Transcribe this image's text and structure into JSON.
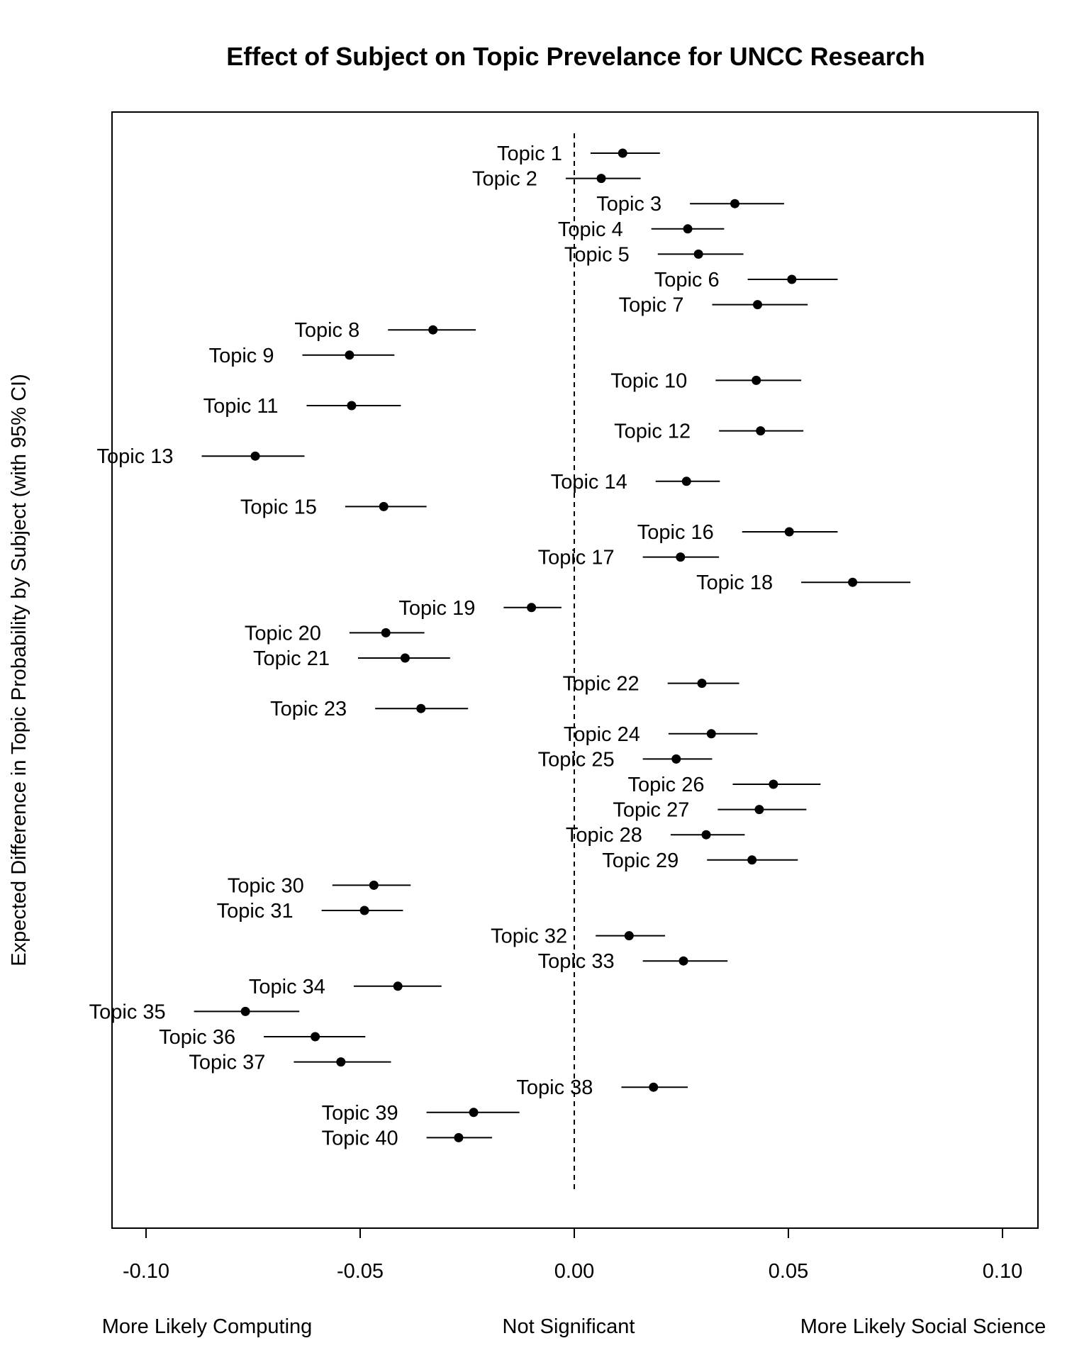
{
  "chart_data": {
    "type": "scatter",
    "title": "Effect of Subject on Topic Prevelance for UNCC Research",
    "ylabel": "Expected Difference in Topic Probability by Subject (with 95% CI)",
    "xlim": [
      -0.108,
      0.108
    ],
    "x_ticks": [
      -0.1,
      -0.05,
      0.0,
      0.05,
      0.1
    ],
    "x_tick_labels": [
      "-0.10",
      "-0.05",
      "0.00",
      "0.05",
      "0.10"
    ],
    "reference_line_x": 0,
    "bottom_labels": {
      "left": "More Likely Computing",
      "center": "Not Significant",
      "right": "More Likely Social Science"
    },
    "points": [
      {
        "label": "Topic 1",
        "estimate": 0.0113,
        "lower": 0.0038,
        "upper": 0.02,
        "row": 1
      },
      {
        "label": "Topic 2",
        "estimate": 0.0063,
        "lower": -0.002,
        "upper": 0.0155,
        "row": 2
      },
      {
        "label": "Topic 3",
        "estimate": 0.0375,
        "lower": 0.027,
        "upper": 0.049,
        "row": 3
      },
      {
        "label": "Topic 4",
        "estimate": 0.0265,
        "lower": 0.018,
        "upper": 0.035,
        "row": 4
      },
      {
        "label": "Topic 5",
        "estimate": 0.029,
        "lower": 0.0195,
        "upper": 0.0395,
        "row": 5
      },
      {
        "label": "Topic 6",
        "estimate": 0.0508,
        "lower": 0.0405,
        "upper": 0.0615,
        "row": 6
      },
      {
        "label": "Topic 7",
        "estimate": 0.0428,
        "lower": 0.0322,
        "upper": 0.0545,
        "row": 7
      },
      {
        "label": "Topic 8",
        "estimate": -0.033,
        "lower": -0.0435,
        "upper": -0.023,
        "row": 8
      },
      {
        "label": "Topic 9",
        "estimate": -0.0525,
        "lower": -0.0635,
        "upper": -0.042,
        "row": 9
      },
      {
        "label": "Topic 10",
        "estimate": 0.0425,
        "lower": 0.033,
        "upper": 0.053,
        "row": 10
      },
      {
        "label": "Topic 11",
        "estimate": -0.052,
        "lower": -0.0625,
        "upper": -0.0405,
        "row": 11
      },
      {
        "label": "Topic 12",
        "estimate": 0.0435,
        "lower": 0.0338,
        "upper": 0.0535,
        "row": 12
      },
      {
        "label": "Topic 13",
        "estimate": -0.0745,
        "lower": -0.087,
        "upper": -0.063,
        "row": 13
      },
      {
        "label": "Topic 14",
        "estimate": 0.0262,
        "lower": 0.019,
        "upper": 0.034,
        "row": 14
      },
      {
        "label": "Topic 15",
        "estimate": -0.0445,
        "lower": -0.0535,
        "upper": -0.0345,
        "row": 15
      },
      {
        "label": "Topic 16",
        "estimate": 0.0502,
        "lower": 0.0392,
        "upper": 0.0615,
        "row": 16
      },
      {
        "label": "Topic 17",
        "estimate": 0.0248,
        "lower": 0.016,
        "upper": 0.0338,
        "row": 17
      },
      {
        "label": "Topic 18",
        "estimate": 0.065,
        "lower": 0.053,
        "upper": 0.0785,
        "row": 18
      },
      {
        "label": "Topic 19",
        "estimate": -0.01,
        "lower": -0.0165,
        "upper": -0.003,
        "row": 19
      },
      {
        "label": "Topic 20",
        "estimate": -0.044,
        "lower": -0.0525,
        "upper": -0.035,
        "row": 20
      },
      {
        "label": "Topic 21",
        "estimate": -0.0395,
        "lower": -0.0505,
        "upper": -0.029,
        "row": 21
      },
      {
        "label": "Topic 22",
        "estimate": 0.0298,
        "lower": 0.0218,
        "upper": 0.0385,
        "row": 22
      },
      {
        "label": "Topic 23",
        "estimate": -0.0358,
        "lower": -0.0465,
        "upper": -0.0248,
        "row": 23
      },
      {
        "label": "Topic 24",
        "estimate": 0.032,
        "lower": 0.022,
        "upper": 0.0428,
        "row": 24
      },
      {
        "label": "Topic 25",
        "estimate": 0.0238,
        "lower": 0.016,
        "upper": 0.0322,
        "row": 25
      },
      {
        "label": "Topic 26",
        "estimate": 0.0465,
        "lower": 0.037,
        "upper": 0.0575,
        "row": 26
      },
      {
        "label": "Topic 27",
        "estimate": 0.0432,
        "lower": 0.0335,
        "upper": 0.0542,
        "row": 27
      },
      {
        "label": "Topic 28",
        "estimate": 0.0308,
        "lower": 0.0225,
        "upper": 0.0398,
        "row": 28
      },
      {
        "label": "Topic 29",
        "estimate": 0.0415,
        "lower": 0.031,
        "upper": 0.0522,
        "row": 29
      },
      {
        "label": "Topic 30",
        "estimate": -0.0468,
        "lower": -0.0565,
        "upper": -0.0382,
        "row": 30
      },
      {
        "label": "Topic 31",
        "estimate": -0.049,
        "lower": -0.059,
        "upper": -0.04,
        "row": 31
      },
      {
        "label": "Topic 32",
        "estimate": 0.0128,
        "lower": 0.005,
        "upper": 0.0212,
        "row": 32
      },
      {
        "label": "Topic 33",
        "estimate": 0.0255,
        "lower": 0.016,
        "upper": 0.0358,
        "row": 33
      },
      {
        "label": "Topic 34",
        "estimate": -0.0412,
        "lower": -0.0515,
        "upper": -0.031,
        "row": 34
      },
      {
        "label": "Topic 35",
        "estimate": -0.0768,
        "lower": -0.0888,
        "upper": -0.0642,
        "row": 35
      },
      {
        "label": "Topic 36",
        "estimate": -0.0605,
        "lower": -0.0725,
        "upper": -0.0488,
        "row": 36
      },
      {
        "label": "Topic 37",
        "estimate": -0.0545,
        "lower": -0.0655,
        "upper": -0.0428,
        "row": 37
      },
      {
        "label": "Topic 38",
        "estimate": 0.0185,
        "lower": 0.011,
        "upper": 0.0265,
        "row": 38
      },
      {
        "label": "Topic 39",
        "estimate": -0.0235,
        "lower": -0.0345,
        "upper": -0.0128,
        "row": 39
      },
      {
        "label": "Topic 40",
        "estimate": -0.027,
        "lower": -0.0345,
        "upper": -0.0192,
        "row": 40
      }
    ]
  }
}
